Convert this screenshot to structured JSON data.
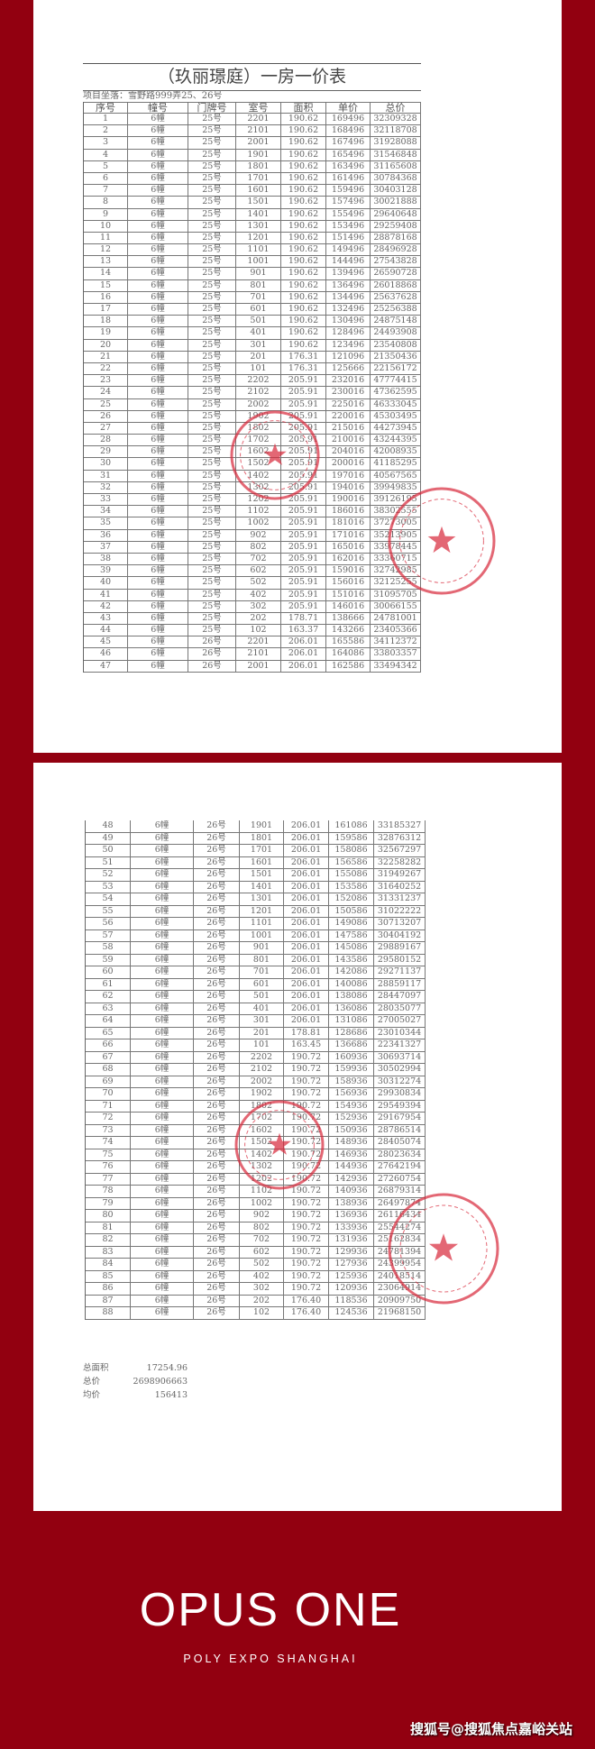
{
  "background_color": "#920010",
  "document": {
    "title": "（玖丽璟庭）一房一价表",
    "project_location": "项目坐落：雪野路999弄25、26号",
    "columns": [
      "序号",
      "幢号",
      "门牌号",
      "室号",
      "面积",
      "单价",
      "总价"
    ],
    "rows_page1": [
      [
        "1",
        "6幢",
        "25号",
        "2201",
        "190.62",
        "169496",
        "32309328"
      ],
      [
        "2",
        "6幢",
        "25号",
        "2101",
        "190.62",
        "168496",
        "32118708"
      ],
      [
        "3",
        "6幢",
        "25号",
        "2001",
        "190.62",
        "167496",
        "31928088"
      ],
      [
        "4",
        "6幢",
        "25号",
        "1901",
        "190.62",
        "165496",
        "31546848"
      ],
      [
        "5",
        "6幢",
        "25号",
        "1801",
        "190.62",
        "163496",
        "31165608"
      ],
      [
        "6",
        "6幢",
        "25号",
        "1701",
        "190.62",
        "161496",
        "30784368"
      ],
      [
        "7",
        "6幢",
        "25号",
        "1601",
        "190.62",
        "159496",
        "30403128"
      ],
      [
        "8",
        "6幢",
        "25号",
        "1501",
        "190.62",
        "157496",
        "30021888"
      ],
      [
        "9",
        "6幢",
        "25号",
        "1401",
        "190.62",
        "155496",
        "29640648"
      ],
      [
        "10",
        "6幢",
        "25号",
        "1301",
        "190.62",
        "153496",
        "29259408"
      ],
      [
        "11",
        "6幢",
        "25号",
        "1201",
        "190.62",
        "151496",
        "28878168"
      ],
      [
        "12",
        "6幢",
        "25号",
        "1101",
        "190.62",
        "149496",
        "28496928"
      ],
      [
        "13",
        "6幢",
        "25号",
        "1001",
        "190.62",
        "144496",
        "27543828"
      ],
      [
        "14",
        "6幢",
        "25号",
        "901",
        "190.62",
        "139496",
        "26590728"
      ],
      [
        "15",
        "6幢",
        "25号",
        "801",
        "190.62",
        "136496",
        "26018868"
      ],
      [
        "16",
        "6幢",
        "25号",
        "701",
        "190.62",
        "134496",
        "25637628"
      ],
      [
        "17",
        "6幢",
        "25号",
        "601",
        "190.62",
        "132496",
        "25256388"
      ],
      [
        "18",
        "6幢",
        "25号",
        "501",
        "190.62",
        "130496",
        "24875148"
      ],
      [
        "19",
        "6幢",
        "25号",
        "401",
        "190.62",
        "128496",
        "24493908"
      ],
      [
        "20",
        "6幢",
        "25号",
        "301",
        "190.62",
        "123496",
        "23540808"
      ],
      [
        "21",
        "6幢",
        "25号",
        "201",
        "176.31",
        "121096",
        "21350436"
      ],
      [
        "22",
        "6幢",
        "25号",
        "101",
        "176.31",
        "125666",
        "22156172"
      ],
      [
        "23",
        "6幢",
        "25号",
        "2202",
        "205.91",
        "232016",
        "47774415"
      ],
      [
        "24",
        "6幢",
        "25号",
        "2102",
        "205.91",
        "230016",
        "47362595"
      ],
      [
        "25",
        "6幢",
        "25号",
        "2002",
        "205.91",
        "225016",
        "46333045"
      ],
      [
        "26",
        "6幢",
        "25号",
        "1902",
        "205.91",
        "220016",
        "45303495"
      ],
      [
        "27",
        "6幢",
        "25号",
        "1802",
        "205.91",
        "215016",
        "44273945"
      ],
      [
        "28",
        "6幢",
        "25号",
        "1702",
        "205.91",
        "210016",
        "43244395"
      ],
      [
        "29",
        "6幢",
        "25号",
        "1602",
        "205.91",
        "204016",
        "42008935"
      ],
      [
        "30",
        "6幢",
        "25号",
        "1502",
        "205.91",
        "200016",
        "41185295"
      ],
      [
        "31",
        "6幢",
        "25号",
        "1402",
        "205.91",
        "197016",
        "40567565"
      ],
      [
        "32",
        "6幢",
        "25号",
        "1302",
        "205.91",
        "194016",
        "39949835"
      ],
      [
        "33",
        "6幢",
        "25号",
        "1202",
        "205.91",
        "190016",
        "39126195"
      ],
      [
        "34",
        "6幢",
        "25号",
        "1102",
        "205.91",
        "186016",
        "38302555"
      ],
      [
        "35",
        "6幢",
        "25号",
        "1002",
        "205.91",
        "181016",
        "37273005"
      ],
      [
        "36",
        "6幢",
        "25号",
        "902",
        "205.91",
        "171016",
        "35213905"
      ],
      [
        "37",
        "6幢",
        "25号",
        "802",
        "205.91",
        "165016",
        "33978445"
      ],
      [
        "38",
        "6幢",
        "25号",
        "702",
        "205.91",
        "162016",
        "33360715"
      ],
      [
        "39",
        "6幢",
        "25号",
        "602",
        "205.91",
        "159016",
        "32742985"
      ],
      [
        "40",
        "6幢",
        "25号",
        "502",
        "205.91",
        "156016",
        "32125255"
      ],
      [
        "41",
        "6幢",
        "25号",
        "402",
        "205.91",
        "151016",
        "31095705"
      ],
      [
        "42",
        "6幢",
        "25号",
        "302",
        "205.91",
        "146016",
        "30066155"
      ],
      [
        "43",
        "6幢",
        "25号",
        "202",
        "178.71",
        "138666",
        "24781001"
      ],
      [
        "44",
        "6幢",
        "25号",
        "102",
        "163.37",
        "143266",
        "23405366"
      ],
      [
        "45",
        "6幢",
        "26号",
        "2201",
        "206.01",
        "165586",
        "34112372"
      ],
      [
        "46",
        "6幢",
        "26号",
        "2101",
        "206.01",
        "164086",
        "33803357"
      ],
      [
        "47",
        "6幢",
        "26号",
        "2001",
        "206.01",
        "162586",
        "33494342"
      ]
    ],
    "rows_page2": [
      [
        "48",
        "6幢",
        "26号",
        "1901",
        "206.01",
        "161086",
        "33185327"
      ],
      [
        "49",
        "6幢",
        "26号",
        "1801",
        "206.01",
        "159586",
        "32876312"
      ],
      [
        "50",
        "6幢",
        "26号",
        "1701",
        "206.01",
        "158086",
        "32567297"
      ],
      [
        "51",
        "6幢",
        "26号",
        "1601",
        "206.01",
        "156586",
        "32258282"
      ],
      [
        "52",
        "6幢",
        "26号",
        "1501",
        "206.01",
        "155086",
        "31949267"
      ],
      [
        "53",
        "6幢",
        "26号",
        "1401",
        "206.01",
        "153586",
        "31640252"
      ],
      [
        "54",
        "6幢",
        "26号",
        "1301",
        "206.01",
        "152086",
        "31331237"
      ],
      [
        "55",
        "6幢",
        "26号",
        "1201",
        "206.01",
        "150586",
        "31022222"
      ],
      [
        "56",
        "6幢",
        "26号",
        "1101",
        "206.01",
        "149086",
        "30713207"
      ],
      [
        "57",
        "6幢",
        "26号",
        "1001",
        "206.01",
        "147586",
        "30404192"
      ],
      [
        "58",
        "6幢",
        "26号",
        "901",
        "206.01",
        "145086",
        "29889167"
      ],
      [
        "59",
        "6幢",
        "26号",
        "801",
        "206.01",
        "143586",
        "29580152"
      ],
      [
        "60",
        "6幢",
        "26号",
        "701",
        "206.01",
        "142086",
        "29271137"
      ],
      [
        "61",
        "6幢",
        "26号",
        "601",
        "206.01",
        "140086",
        "28859117"
      ],
      [
        "62",
        "6幢",
        "26号",
        "501",
        "206.01",
        "138086",
        "28447097"
      ],
      [
        "63",
        "6幢",
        "26号",
        "401",
        "206.01",
        "136086",
        "28035077"
      ],
      [
        "64",
        "6幢",
        "26号",
        "301",
        "206.01",
        "131086",
        "27005027"
      ],
      [
        "65",
        "6幢",
        "26号",
        "201",
        "178.81",
        "128686",
        "23010344"
      ],
      [
        "66",
        "6幢",
        "26号",
        "101",
        "163.45",
        "136686",
        "22341327"
      ],
      [
        "67",
        "6幢",
        "26号",
        "2202",
        "190.72",
        "160936",
        "30693714"
      ],
      [
        "68",
        "6幢",
        "26号",
        "2102",
        "190.72",
        "159936",
        "30502994"
      ],
      [
        "69",
        "6幢",
        "26号",
        "2002",
        "190.72",
        "158936",
        "30312274"
      ],
      [
        "70",
        "6幢",
        "26号",
        "1902",
        "190.72",
        "156936",
        "29930834"
      ],
      [
        "71",
        "6幢",
        "26号",
        "1802",
        "190.72",
        "154936",
        "29549394"
      ],
      [
        "72",
        "6幢",
        "26号",
        "1702",
        "190.72",
        "152936",
        "29167954"
      ],
      [
        "73",
        "6幢",
        "26号",
        "1602",
        "190.72",
        "150936",
        "28786514"
      ],
      [
        "74",
        "6幢",
        "26号",
        "1502",
        "190.72",
        "148936",
        "28405074"
      ],
      [
        "75",
        "6幢",
        "26号",
        "1402",
        "190.72",
        "146936",
        "28023634"
      ],
      [
        "76",
        "6幢",
        "26号",
        "1302",
        "190.72",
        "144936",
        "27642194"
      ],
      [
        "77",
        "6幢",
        "26号",
        "1202",
        "190.72",
        "142936",
        "27260754"
      ],
      [
        "78",
        "6幢",
        "26号",
        "1102",
        "190.72",
        "140936",
        "26879314"
      ],
      [
        "79",
        "6幢",
        "26号",
        "1002",
        "190.72",
        "138936",
        "26497874"
      ],
      [
        "80",
        "6幢",
        "26号",
        "902",
        "190.72",
        "136936",
        "26116434"
      ],
      [
        "81",
        "6幢",
        "26号",
        "802",
        "190.72",
        "133936",
        "25544274"
      ],
      [
        "82",
        "6幢",
        "26号",
        "702",
        "190.72",
        "131936",
        "25162834"
      ],
      [
        "83",
        "6幢",
        "26号",
        "602",
        "190.72",
        "129936",
        "24781394"
      ],
      [
        "84",
        "6幢",
        "26号",
        "502",
        "190.72",
        "127936",
        "24399954"
      ],
      [
        "85",
        "6幢",
        "26号",
        "402",
        "190.72",
        "125936",
        "24018514"
      ],
      [
        "86",
        "6幢",
        "26号",
        "302",
        "190.72",
        "120936",
        "23064914"
      ],
      [
        "87",
        "6幢",
        "26号",
        "202",
        "176.40",
        "118536",
        "20909750"
      ],
      [
        "88",
        "6幢",
        "26号",
        "102",
        "176.40",
        "124536",
        "21968150"
      ]
    ],
    "summary": {
      "total_area_label": "总面积",
      "total_area": "17254.96",
      "total_price_label": "总价",
      "total_price": "2698906663",
      "avg_price_label": "均价",
      "avg_price": "156413"
    },
    "stamp_color": "#d8283a"
  },
  "brand": {
    "title": "OPUS ONE",
    "subtitle": "POLY EXPO SHANGHAI"
  },
  "watermark": "搜狐号@搜狐焦点嘉峪关站"
}
